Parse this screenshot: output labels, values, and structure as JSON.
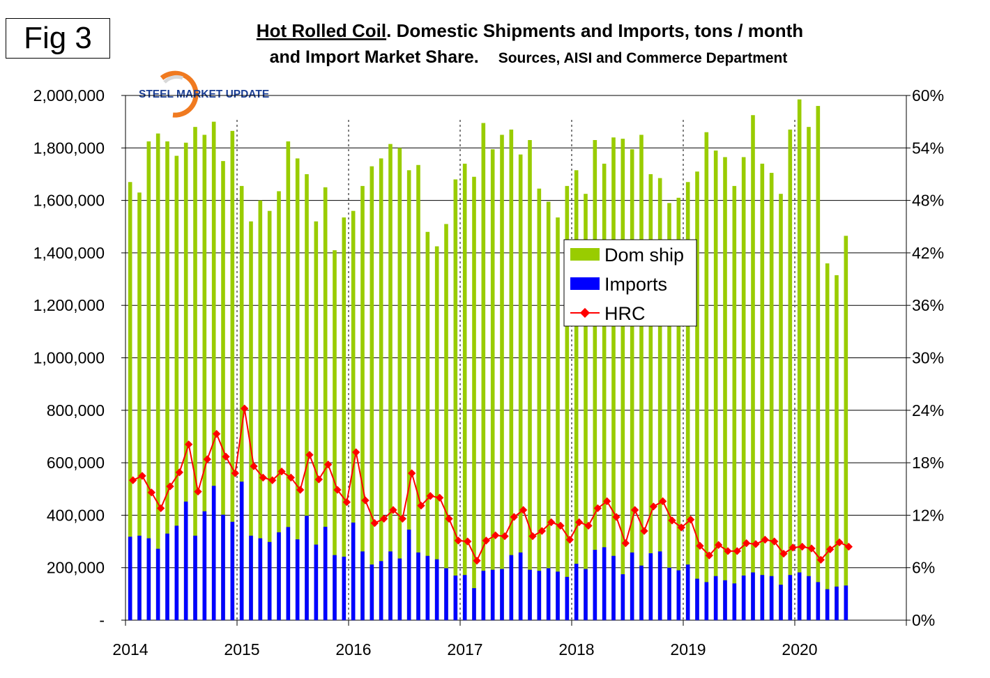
{
  "figure_label": "Fig 3",
  "logo": {
    "text": "STEEL MARKET UPDATE"
  },
  "chart_data": {
    "type": "bar+line",
    "title": {
      "underlined": "Hot Rolled Coil",
      "rest_line1": ". Domestic Shipments and Imports, tons / month",
      "line2": "and Import Market Share.",
      "sources": "Sources, AISI and Commerce Department"
    },
    "left_axis": {
      "ylim": [
        0,
        2000000
      ],
      "ticks": [
        "-",
        "200,000",
        "400,000",
        "600,000",
        "800,000",
        "1,000,000",
        "1,200,000",
        "1,400,000",
        "1,600,000",
        "1,800,000",
        "2,000,000"
      ]
    },
    "right_axis": {
      "ylim": [
        0,
        60
      ],
      "ticks": [
        "0%",
        "6%",
        "12%",
        "18%",
        "24%",
        "30%",
        "36%",
        "42%",
        "48%",
        "54%",
        "60%"
      ]
    },
    "x_axis": {
      "year_labels": [
        "2014",
        "2015",
        "2016",
        "2017",
        "2018",
        "2019",
        "2020"
      ],
      "total_months": 84,
      "vertical_dotted_gridlines_at_years": true
    },
    "legend": {
      "placement": "center-right",
      "entries": [
        "Dom ship",
        "Imports",
        "HRC"
      ]
    },
    "series": [
      {
        "name": "Dom ship",
        "type": "bar",
        "color": "#99cc00",
        "axis": "left",
        "values": [
          1670000,
          1630000,
          1825000,
          1855000,
          1825000,
          1770000,
          1820000,
          1880000,
          1850000,
          1900000,
          1750000,
          1865000,
          1655000,
          1520000,
          1600000,
          1560000,
          1635000,
          1825000,
          1760000,
          1700000,
          1520000,
          1650000,
          1410000,
          1535000,
          1560000,
          1655000,
          1730000,
          1760000,
          1815000,
          1800000,
          1715000,
          1735000,
          1480000,
          1425000,
          1510000,
          1680000,
          1740000,
          1690000,
          1895000,
          1795000,
          1850000,
          1870000,
          1775000,
          1830000,
          1645000,
          1595000,
          1535000,
          1655000,
          1715000,
          1625000,
          1830000,
          1740000,
          1840000,
          1835000,
          1795000,
          1850000,
          1700000,
          1685000,
          1590000,
          1610000,
          1670000,
          1710000,
          1860000,
          1790000,
          1765000,
          1655000,
          1765000,
          1925000,
          1740000,
          1705000,
          1625000,
          1870000,
          1985000,
          1880000,
          1960000,
          1360000,
          1315000,
          1465000
        ]
      },
      {
        "name": "Imports",
        "type": "bar",
        "color": "#0000ff",
        "axis": "left",
        "values": [
          318000,
          322000,
          312000,
          272000,
          330000,
          360000,
          452000,
          322000,
          415000,
          512000,
          402000,
          375000,
          528000,
          322000,
          312000,
          298000,
          335000,
          355000,
          308000,
          398000,
          288000,
          356000,
          248000,
          242000,
          372000,
          262000,
          212000,
          225000,
          262000,
          235000,
          345000,
          258000,
          245000,
          232000,
          198000,
          170000,
          172000,
          122000,
          188000,
          192000,
          195000,
          248000,
          258000,
          192000,
          188000,
          198000,
          185000,
          165000,
          215000,
          195000,
          268000,
          278000,
          245000,
          175000,
          258000,
          208000,
          255000,
          262000,
          200000,
          190000,
          212000,
          158000,
          145000,
          168000,
          152000,
          140000,
          170000,
          182000,
          172000,
          168000,
          135000,
          172000,
          182000,
          168000,
          145000,
          118000,
          128000,
          132000
        ]
      },
      {
        "name": "HRC",
        "type": "line",
        "color": "#ff0000",
        "axis": "right",
        "unit": "%",
        "values": [
          16.0,
          16.5,
          14.6,
          12.8,
          15.3,
          16.9,
          20.1,
          14.7,
          18.4,
          21.3,
          18.7,
          16.8,
          24.2,
          17.6,
          16.3,
          16.0,
          17.0,
          16.3,
          14.9,
          18.9,
          16.1,
          17.8,
          14.9,
          13.5,
          19.2,
          13.7,
          11.1,
          11.6,
          12.6,
          11.6,
          16.8,
          13.1,
          14.2,
          14.0,
          11.6,
          9.1,
          9.0,
          6.8,
          9.1,
          9.7,
          9.6,
          11.8,
          12.6,
          9.6,
          10.2,
          11.2,
          10.8,
          9.2,
          11.2,
          10.8,
          12.8,
          13.6,
          11.8,
          8.8,
          12.6,
          10.2,
          13.0,
          13.6,
          11.4,
          10.6,
          11.5,
          8.5,
          7.4,
          8.6,
          7.9,
          7.9,
          8.8,
          8.7,
          9.2,
          9.0,
          7.6,
          8.3,
          8.4,
          8.2,
          6.9,
          8.1,
          8.9,
          8.4
        ]
      }
    ]
  }
}
